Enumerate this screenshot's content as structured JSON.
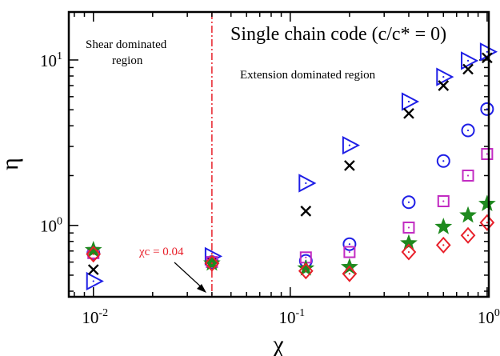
{
  "chart_data": {
    "type": "scatter",
    "title": "",
    "xlabel": "χ",
    "ylabel": "η",
    "xscale": "log",
    "yscale": "log",
    "xlim": [
      0.0075,
      1.02
    ],
    "ylim": [
      0.37,
      19.5
    ],
    "grid": false,
    "xticks": [
      {
        "value": 0.01,
        "base": "10",
        "exp": "-2"
      },
      {
        "value": 0.1,
        "base": "10",
        "exp": "-1"
      },
      {
        "value": 1,
        "base": "10",
        "exp": "0"
      }
    ],
    "yticks": [
      {
        "value": 1,
        "base": "10",
        "exp": "0"
      },
      {
        "value": 10,
        "base": "10",
        "exp": "1"
      }
    ],
    "annotations": {
      "header": "Single chain code (c/c* = 0)",
      "shear_line1": "Shear dominated",
      "shear_line2": "region",
      "extension": "Extension dominated region",
      "chi_c": "χc = 0.04"
    },
    "vline": {
      "x": 0.04,
      "color": "#e8202a"
    },
    "series": [
      {
        "marker": "triangle-right",
        "color": "#1f1fe6",
        "points": [
          [
            0.01,
            0.46
          ],
          [
            0.04,
            0.65
          ],
          [
            0.12,
            1.8
          ],
          [
            0.2,
            3.05
          ],
          [
            0.4,
            5.6
          ],
          [
            0.6,
            7.9
          ],
          [
            0.8,
            9.9
          ],
          [
            1.0,
            11.2
          ]
        ]
      },
      {
        "marker": "x",
        "color": "#000000",
        "points": [
          [
            0.01,
            0.54
          ],
          [
            0.04,
            0.6
          ],
          [
            0.12,
            1.22
          ],
          [
            0.2,
            2.3
          ],
          [
            0.4,
            4.75
          ],
          [
            0.6,
            7.0
          ],
          [
            0.8,
            8.8
          ],
          [
            1.0,
            10.3
          ]
        ]
      },
      {
        "marker": "circle",
        "color": "#1f1fe6",
        "points": [
          [
            0.01,
            0.68
          ],
          [
            0.04,
            0.6
          ],
          [
            0.12,
            0.61
          ],
          [
            0.2,
            0.77
          ],
          [
            0.4,
            1.38
          ],
          [
            0.6,
            2.45
          ],
          [
            0.8,
            3.75
          ],
          [
            1.0,
            5.05
          ]
        ]
      },
      {
        "marker": "square",
        "color": "#c22bc2",
        "points": [
          [
            0.01,
            0.68
          ],
          [
            0.04,
            0.6
          ],
          [
            0.12,
            0.64
          ],
          [
            0.2,
            0.69
          ],
          [
            0.4,
            0.97
          ],
          [
            0.6,
            1.4
          ],
          [
            0.8,
            2.0
          ],
          [
            1.0,
            2.7
          ]
        ]
      },
      {
        "marker": "star",
        "color": "#1f8a1f",
        "points": [
          [
            0.01,
            0.71
          ],
          [
            0.04,
            0.59
          ],
          [
            0.12,
            0.55
          ],
          [
            0.2,
            0.56
          ],
          [
            0.4,
            0.78
          ],
          [
            0.6,
            0.98
          ],
          [
            0.8,
            1.15
          ],
          [
            1.0,
            1.35
          ]
        ]
      },
      {
        "marker": "diamond",
        "color": "#e8202a",
        "points": [
          [
            0.01,
            0.67
          ],
          [
            0.04,
            0.59
          ],
          [
            0.12,
            0.53
          ],
          [
            0.2,
            0.51
          ],
          [
            0.4,
            0.69
          ],
          [
            0.6,
            0.76
          ],
          [
            0.8,
            0.87
          ],
          [
            1.0,
            1.04
          ]
        ]
      }
    ]
  }
}
